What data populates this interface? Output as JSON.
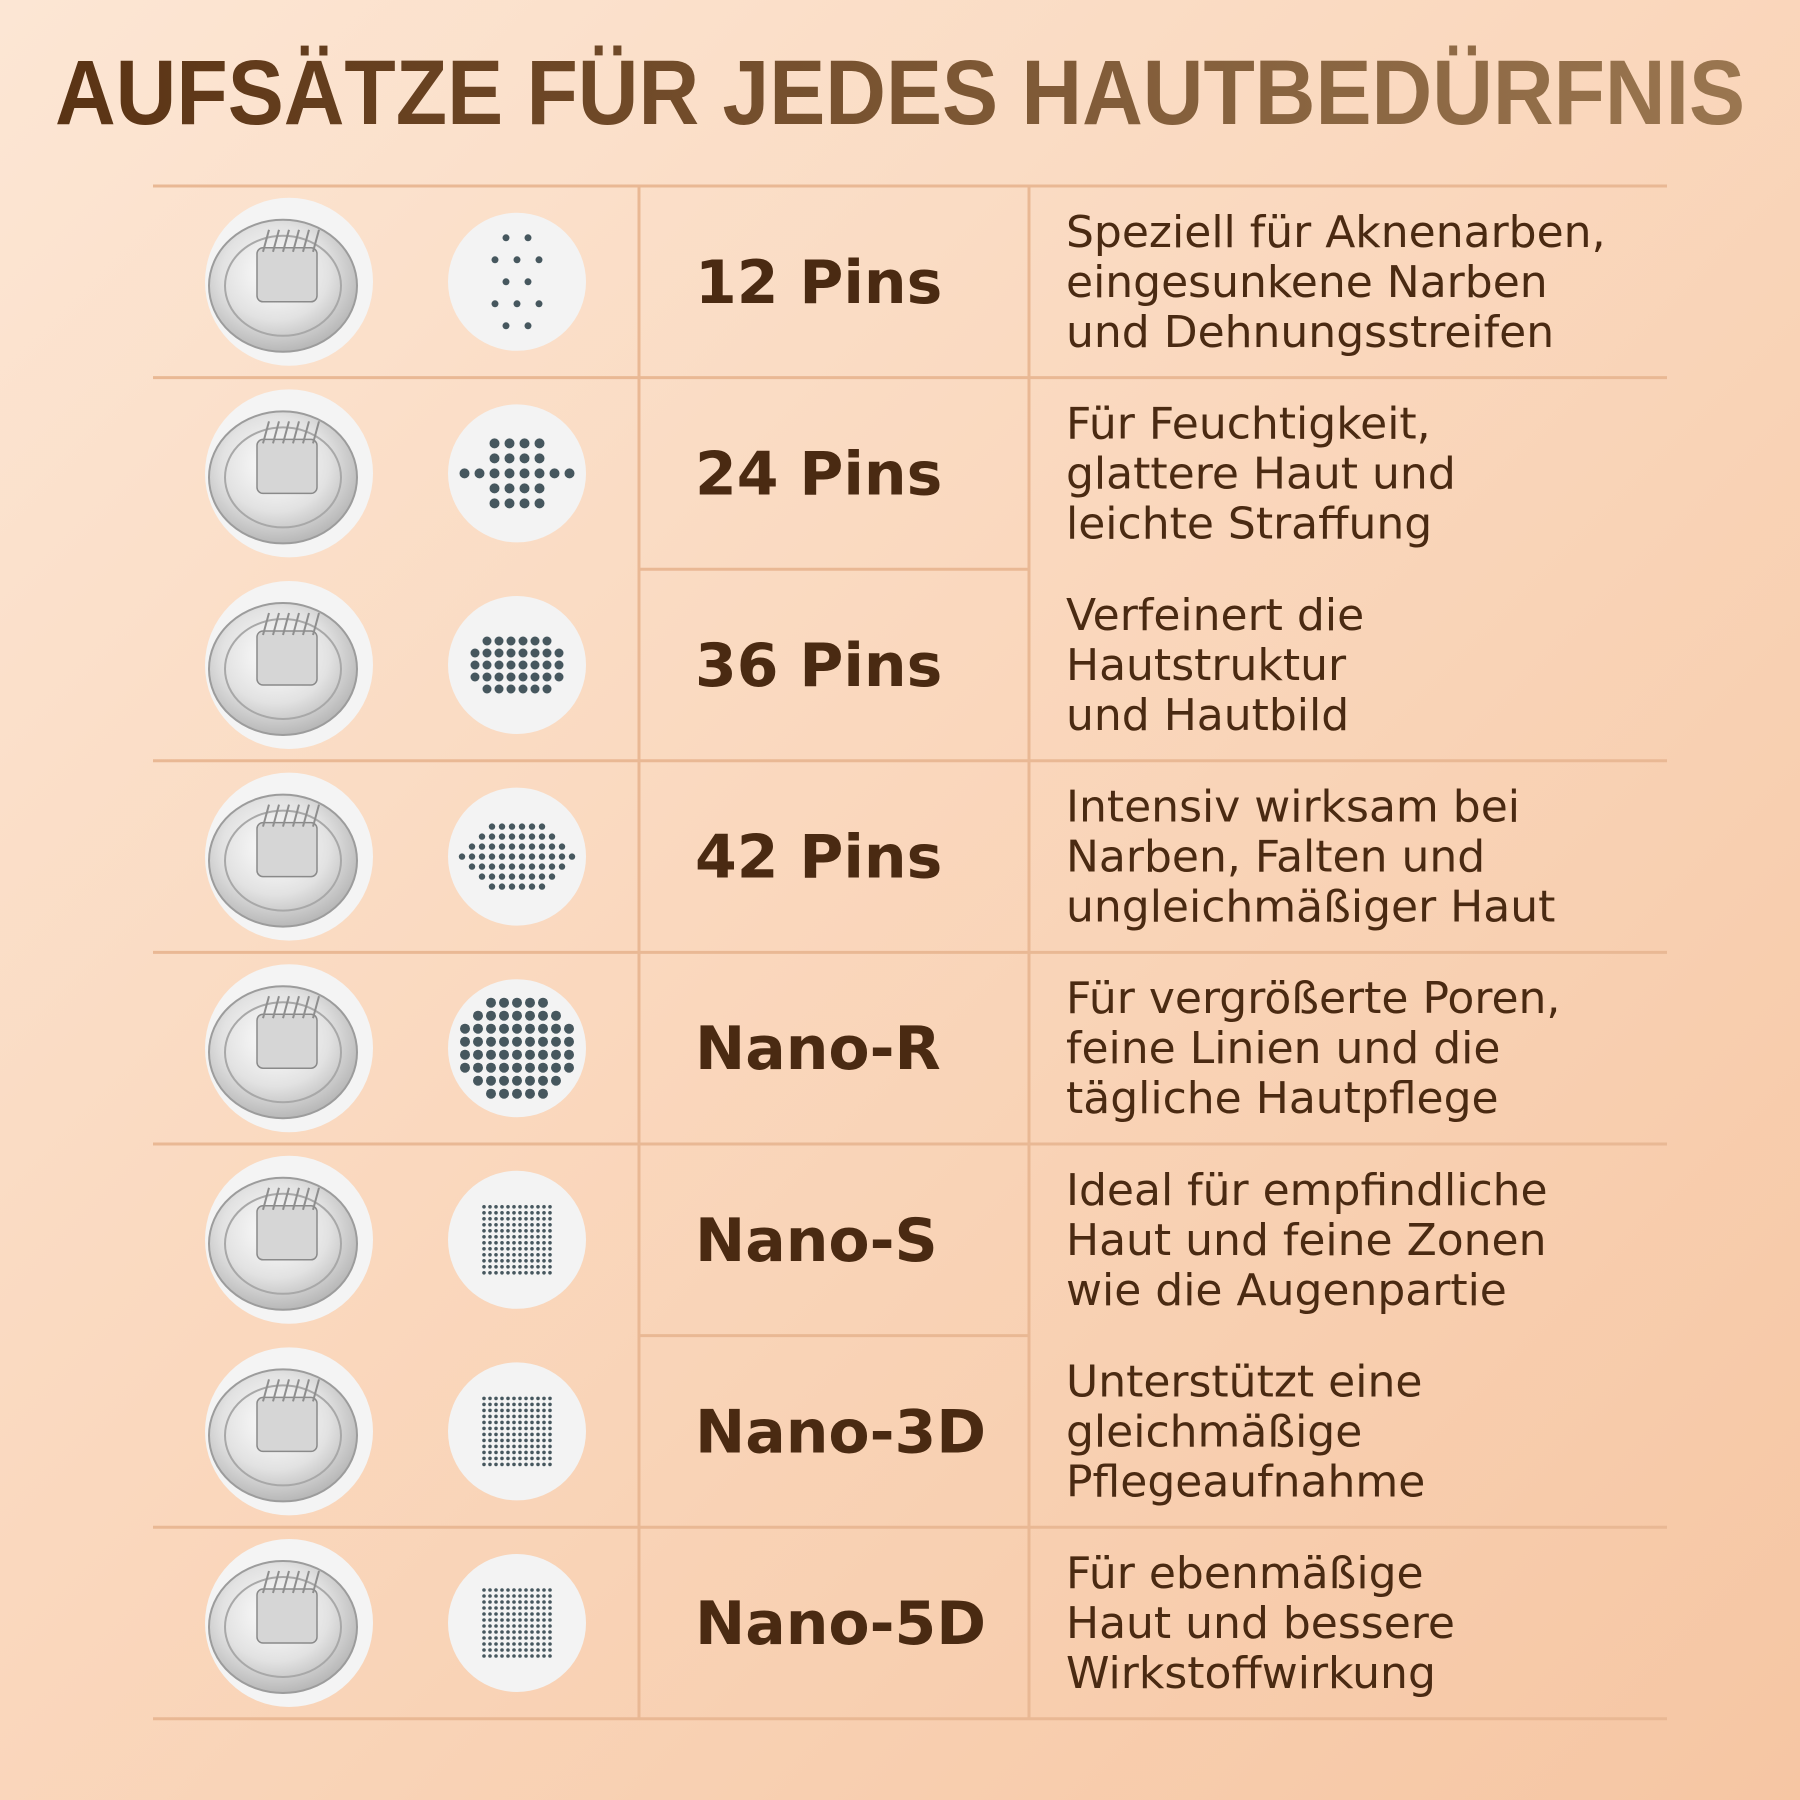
{
  "title": "AUFSÄTZE FÜR JEDES HAUTBEDÜRFNIS",
  "table": {
    "rows": [
      {
        "name": "12 Pins",
        "description": [
          "Speziell für Aknenarben,",
          "eingesunkene Narben",
          "und Dehnungsstreifen"
        ]
      },
      {
        "name": "24 Pins",
        "description": [
          "Für Feuchtigkeit,",
          "glattere Haut und",
          "leichte Straffung"
        ]
      },
      {
        "name": "36 Pins",
        "description": [
          "Verfeinert die",
          "Hautstruktur",
          "und Hautbild"
        ]
      },
      {
        "name": "42 Pins",
        "description": [
          "Intensiv wirksam bei",
          "Narben, Falten und",
          "ungleichmäßiger Haut"
        ]
      },
      {
        "name": "Nano-R",
        "description": [
          "Für vergrößerte Poren,",
          "feine Linien und die",
          "tägliche Hautpflege"
        ]
      },
      {
        "name": "Nano-S",
        "description": [
          "Ideal für empfindliche",
          "Haut und feine Zonen",
          "wie die Augenpartie"
        ]
      },
      {
        "name": "Nano-3D",
        "description": [
          "Unterstützt eine",
          "gleichmäßige",
          "Pflegeaufnahme"
        ]
      },
      {
        "name": "Nano-5D",
        "description": [
          "Für ebenmäßige",
          "Haut und bessere",
          "Wirkstoffwirkung"
        ]
      }
    ]
  }
}
